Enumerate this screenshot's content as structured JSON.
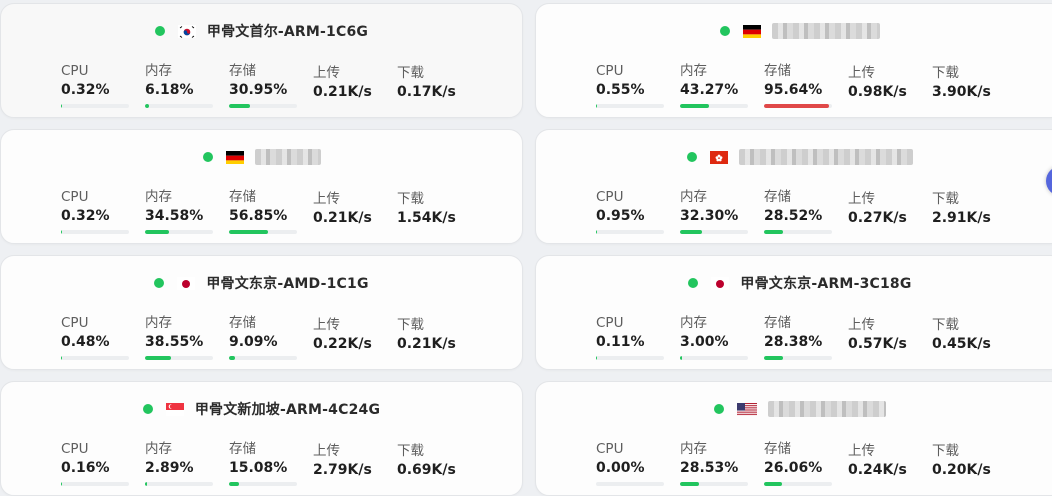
{
  "labels": {
    "cpu": "CPU",
    "mem": "内存",
    "disk": "存储",
    "up": "上传",
    "down": "下载"
  },
  "colors": {
    "online": "#22c55e",
    "bar_ok": "#22c55e",
    "bar_high": "#e04848",
    "track": "#eceef0"
  },
  "servers": [
    {
      "name": "甲骨文首尔-ARM-1C6G",
      "flag": "kr-flag-icon",
      "cpu": "0.32%",
      "mem": "6.18%",
      "disk": "30.95%",
      "up": "0.21K/s",
      "down": "0.17K/s"
    },
    {
      "name": "",
      "flag": "de-flag-icon",
      "cpu": "0.55%",
      "mem": "43.27%",
      "disk": "95.64%",
      "up": "0.98K/s",
      "down": "3.90K/s"
    },
    {
      "name": "",
      "flag": "de-flag-icon",
      "cpu": "0.32%",
      "mem": "34.58%",
      "disk": "56.85%",
      "up": "0.21K/s",
      "down": "1.54K/s"
    },
    {
      "name": "",
      "flag": "hk-flag-icon",
      "cpu": "0.95%",
      "mem": "32.30%",
      "disk": "28.52%",
      "up": "0.27K/s",
      "down": "2.91K/s"
    },
    {
      "name": "甲骨文东京-AMD-1C1G",
      "flag": "jp-flag-icon",
      "cpu": "0.48%",
      "mem": "38.55%",
      "disk": "9.09%",
      "up": "0.22K/s",
      "down": "0.21K/s"
    },
    {
      "name": "甲骨文东京-ARM-3C18G",
      "flag": "jp-flag-icon",
      "cpu": "0.11%",
      "mem": "3.00%",
      "disk": "28.38%",
      "up": "0.57K/s",
      "down": "0.45K/s"
    },
    {
      "name": "甲骨文新加坡-ARM-4C24G",
      "flag": "sg-flag-icon",
      "cpu": "0.16%",
      "mem": "2.89%",
      "disk": "15.08%",
      "up": "2.79K/s",
      "down": "0.69K/s"
    },
    {
      "name": "",
      "flag": "us-flag-icon",
      "cpu": "0.00%",
      "mem": "28.53%",
      "disk": "26.06%",
      "up": "0.24K/s",
      "down": "0.20K/s"
    }
  ]
}
